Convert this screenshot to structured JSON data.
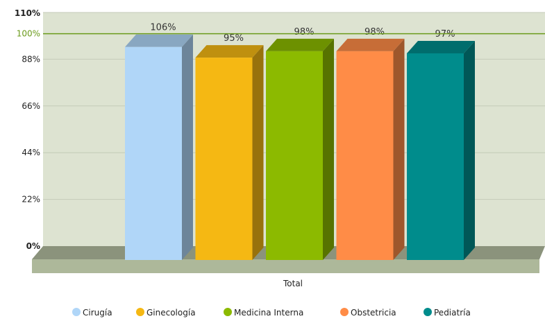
{
  "chart_data": {
    "type": "bar",
    "categories": [
      "Total"
    ],
    "series": [
      {
        "name": "Cirugía",
        "values": [
          106
        ],
        "label": "106%"
      },
      {
        "name": "Ginecología",
        "values": [
          95
        ],
        "label": "95%"
      },
      {
        "name": "Medicina Interna",
        "values": [
          98
        ],
        "label": "98%"
      },
      {
        "name": "Obstetricia",
        "values": [
          98
        ],
        "label": "98%"
      },
      {
        "name": "Pediatría",
        "values": [
          97
        ],
        "label": "97%"
      }
    ],
    "ylim": [
      0,
      110
    ],
    "y_ticks": [
      "0%",
      "22%",
      "44%",
      "66%",
      "88%",
      "100%",
      "110%"
    ],
    "y_tick_values": [
      0,
      22,
      44,
      66,
      88,
      100,
      110
    ],
    "target_line": {
      "value": 100,
      "label": "100%",
      "color": "#6a9a1a"
    },
    "grid": true,
    "legend_position": "bottom",
    "colors": [
      "#b0d6f8",
      "#f5b813",
      "#8cba00",
      "#ff8c47",
      "#008c8c"
    ],
    "bar_clipped_at": 100
  }
}
